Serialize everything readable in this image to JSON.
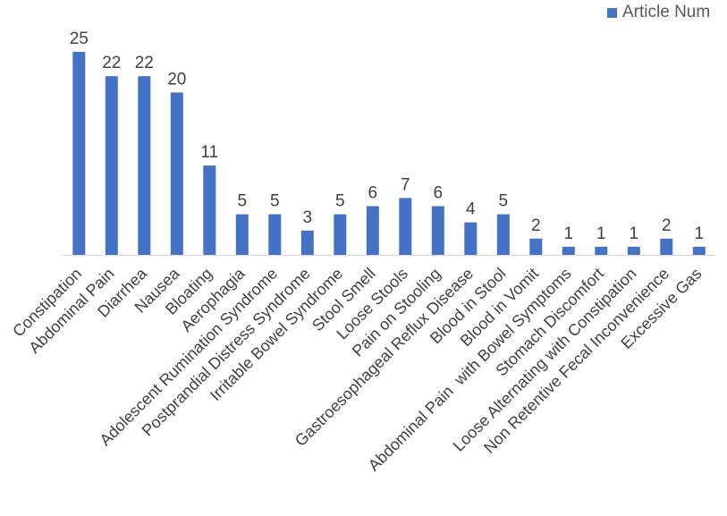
{
  "chart_data": {
    "type": "bar",
    "title": "",
    "xlabel": "",
    "ylabel": "",
    "categories": [
      "Constipation",
      "Abdominal Pain",
      "Diarrhea",
      "Nausea",
      "Bloating",
      "Aerophagia",
      "Adolescent Rumination Syndrome",
      "Postprandial Distress Syndrome",
      "Irritable Bowel Syndrome",
      "Stool Smell",
      "Loose Stools",
      "Pain on Stooling",
      "Gastroesophageal Reflux Disease",
      "Blood in Stool",
      "Blood in Vomit",
      "Abdominal Pain  with Bowel Symptoms",
      "Stomach Discomfort",
      "Loose Alternating with Constipation",
      "Non Retentive Fecal Inconvenience",
      "Excessive Gas"
    ],
    "series": [
      {
        "name": "Article Num",
        "values": [
          25,
          22,
          22,
          20,
          11,
          5,
          5,
          3,
          5,
          6,
          7,
          6,
          4,
          5,
          2,
          1,
          1,
          1,
          2,
          1
        ],
        "color": "#4472C4"
      }
    ],
    "ylim": [
      0,
      25
    ],
    "data_labels": true,
    "grid": false,
    "legend_position": "top-right"
  }
}
